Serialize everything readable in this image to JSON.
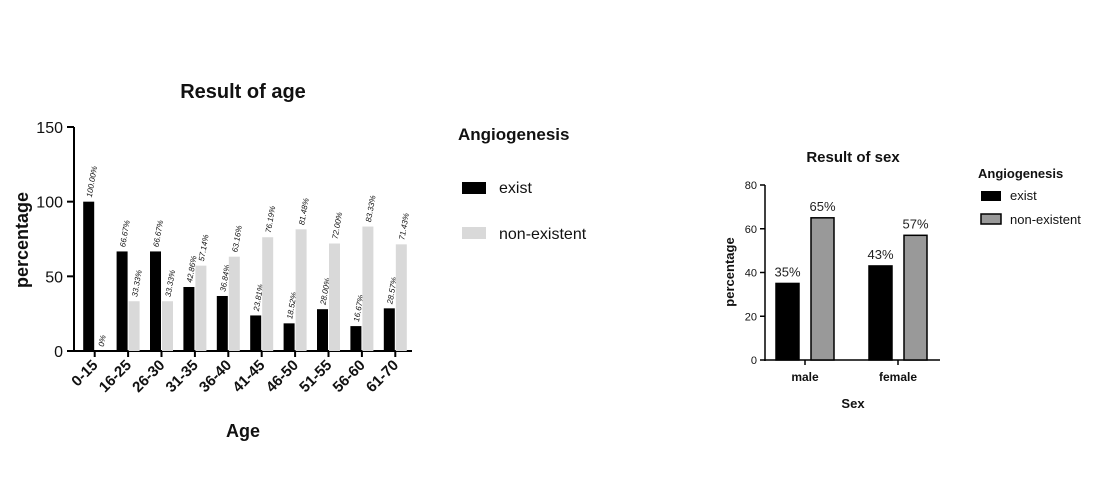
{
  "chart_data": [
    {
      "type": "bar",
      "title": "Result of age",
      "xlabel": "Age",
      "ylabel": "percentage",
      "ylim": [
        0,
        150
      ],
      "yticks": [
        0,
        50,
        100,
        150
      ],
      "categories": [
        "0-15",
        "16-25",
        "26-30",
        "31-35",
        "36-40",
        "41-45",
        "46-50",
        "51-55",
        "56-60",
        "61-70"
      ],
      "series": [
        {
          "name": "exist",
          "color": "#000000",
          "values": [
            100.0,
            66.67,
            66.67,
            42.86,
            36.84,
            23.81,
            18.52,
            28.0,
            16.67,
            28.57
          ],
          "labels": [
            "100.00%",
            "66.67%",
            "66.67%",
            "42.86%",
            "36.84%",
            "23.81%",
            "18.52%",
            "28.00%",
            "16.67%",
            "28.57%"
          ]
        },
        {
          "name": "non-existent",
          "color": "#d9d9d9",
          "values": [
            0,
            33.33,
            33.33,
            57.14,
            63.16,
            76.19,
            81.48,
            72.0,
            83.33,
            71.43
          ],
          "labels": [
            "0%",
            "33.33%",
            "33.33%",
            "57.14%",
            "63.16%",
            "76.19%",
            "81.48%",
            "72.00%",
            "83.33%",
            "71.43%"
          ]
        }
      ],
      "legend": {
        "title": "Angiogenesis",
        "position": "right"
      },
      "grid": false
    },
    {
      "type": "bar",
      "title": "Result of sex",
      "xlabel": "Sex",
      "ylabel": "percentage",
      "ylim": [
        0,
        80
      ],
      "yticks": [
        0,
        20,
        40,
        60,
        80
      ],
      "categories": [
        "male",
        "female"
      ],
      "series": [
        {
          "name": "exist",
          "color": "#000000",
          "values": [
            35,
            43
          ],
          "labels": [
            "35%",
            "43%"
          ]
        },
        {
          "name": "non-existent",
          "color": "#999999",
          "values": [
            65,
            57
          ],
          "labels": [
            "65%",
            "57%"
          ]
        }
      ],
      "legend": {
        "title": "Angiogenesis",
        "position": "right"
      },
      "grid": false
    }
  ]
}
